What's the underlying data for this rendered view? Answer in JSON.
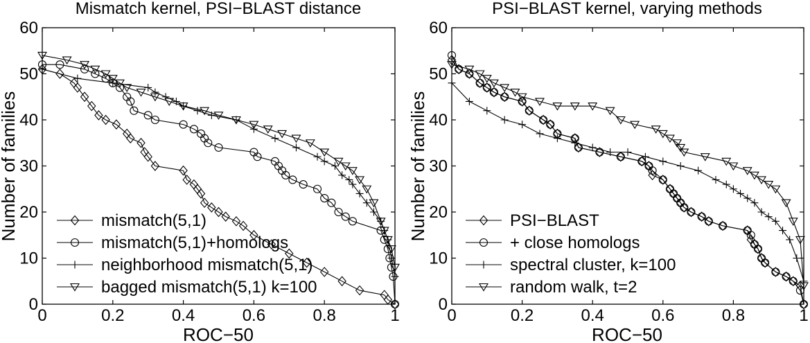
{
  "chart_data": [
    {
      "type": "line",
      "title": "Mismatch kernel, PSI−BLAST distance",
      "xlabel": "ROC−50",
      "ylabel": "Number of families",
      "xlim": [
        0,
        1
      ],
      "ylim": [
        0,
        60
      ],
      "xticks": [
        "0",
        "0.2",
        "0.4",
        "0.6",
        "0.8",
        "1"
      ],
      "yticks": [
        "0",
        "10",
        "20",
        "30",
        "40",
        "50",
        "60"
      ],
      "grid": false,
      "legend_position": "bottom-left",
      "series": [
        {
          "name": "mismatch(5,1)",
          "marker": "diamond",
          "x": [
            0.0,
            0.05,
            0.09,
            0.1,
            0.12,
            0.14,
            0.16,
            0.18,
            0.21,
            0.24,
            0.25,
            0.28,
            0.29,
            0.3,
            0.32,
            0.4,
            0.41,
            0.43,
            0.44,
            0.45,
            0.46,
            0.48,
            0.5,
            0.52,
            0.55,
            0.57,
            0.6,
            0.65,
            0.7,
            0.75,
            0.8,
            0.85,
            0.9,
            0.97,
            0.98,
            1.0
          ],
          "y": [
            51,
            50,
            48,
            47,
            45,
            43,
            41,
            40,
            39,
            37,
            36,
            35,
            33,
            32,
            30,
            29,
            27,
            26,
            25,
            24,
            22,
            21,
            20,
            19,
            18,
            17,
            15,
            13,
            11,
            9,
            7,
            5,
            3,
            2,
            1,
            0
          ]
        },
        {
          "name": "mismatch(5,1)+homologs",
          "marker": "circle",
          "x": [
            0.0,
            0.05,
            0.12,
            0.15,
            0.18,
            0.2,
            0.22,
            0.24,
            0.25,
            0.26,
            0.3,
            0.32,
            0.4,
            0.43,
            0.45,
            0.46,
            0.47,
            0.5,
            0.6,
            0.61,
            0.66,
            0.67,
            0.68,
            0.69,
            0.71,
            0.74,
            0.78,
            0.8,
            0.82,
            0.84,
            0.86,
            0.88,
            0.96,
            0.97,
            0.98,
            0.985,
            0.99,
            0.995,
            1.0
          ],
          "y": [
            52,
            52,
            51,
            50,
            49,
            48,
            47,
            45,
            44,
            42,
            41,
            40,
            39,
            38,
            37,
            36,
            35,
            34,
            33,
            32,
            31,
            30,
            29,
            28,
            27,
            26,
            25,
            23,
            22,
            20,
            19,
            18,
            16,
            14,
            12,
            10,
            8,
            6,
            0
          ]
        },
        {
          "name": "neighborhood mismatch(5,1)",
          "marker": "plus",
          "x": [
            0.0,
            0.1,
            0.2,
            0.3,
            0.32,
            0.35,
            0.38,
            0.4,
            0.44,
            0.48,
            0.55,
            0.6,
            0.66,
            0.72,
            0.78,
            0.8,
            0.83,
            0.85,
            0.87,
            0.88,
            0.9,
            0.92,
            0.94,
            0.96,
            0.97,
            0.98,
            0.99,
            1.0
          ],
          "y": [
            51,
            49,
            48,
            47,
            46,
            45,
            44,
            43,
            42,
            41,
            40,
            38,
            36,
            34,
            32,
            31,
            30,
            28,
            27,
            26,
            24,
            22,
            20,
            18,
            16,
            14,
            10,
            6
          ]
        },
        {
          "name": "bagged mismatch(5,1) k=100",
          "marker": "triangle-down",
          "x": [
            0.0,
            0.07,
            0.12,
            0.15,
            0.18,
            0.2,
            0.22,
            0.24,
            0.28,
            0.32,
            0.36,
            0.4,
            0.46,
            0.5,
            0.55,
            0.6,
            0.64,
            0.68,
            0.72,
            0.76,
            0.8,
            0.84,
            0.86,
            0.88,
            0.9,
            0.92,
            0.94,
            0.96,
            0.97,
            0.98,
            0.99,
            1.0
          ],
          "y": [
            54,
            53,
            52,
            51,
            50,
            49,
            48,
            47,
            46,
            45,
            44,
            43,
            42,
            41,
            40,
            39,
            38,
            37,
            36,
            35,
            33,
            31,
            30,
            29,
            27,
            25,
            22,
            18,
            16,
            14,
            12,
            8
          ]
        }
      ]
    },
    {
      "type": "line",
      "title": "PSI−BLAST kernel, varying methods",
      "xlabel": "ROC−50",
      "ylabel": "Number of families",
      "xlim": [
        0,
        1
      ],
      "ylim": [
        0,
        60
      ],
      "xticks": [
        "0",
        "0.2",
        "0.4",
        "0.6",
        "0.8",
        "1"
      ],
      "yticks": [
        "0",
        "10",
        "20",
        "30",
        "40",
        "50",
        "60"
      ],
      "grid": false,
      "legend_position": "bottom-left",
      "series": [
        {
          "name": "PSI−BLAST",
          "marker": "diamond",
          "x": [
            0.0,
            0.02,
            0.05,
            0.08,
            0.1,
            0.12,
            0.15,
            0.2,
            0.22,
            0.26,
            0.28,
            0.3,
            0.35,
            0.36,
            0.42,
            0.48,
            0.54,
            0.56,
            0.57,
            0.6,
            0.62,
            0.63,
            0.64,
            0.65,
            0.66,
            0.68,
            0.71,
            0.73,
            0.77,
            0.84,
            0.85,
            0.86,
            0.87,
            0.88,
            0.89,
            0.92,
            0.95,
            0.97,
            0.99,
            1.0
          ],
          "y": [
            53,
            51,
            50,
            48,
            47,
            46,
            45,
            44,
            42,
            40,
            39,
            37,
            36,
            34,
            33,
            32,
            31,
            30,
            28,
            27,
            25,
            24,
            23,
            22,
            21,
            20,
            19,
            18,
            17,
            16,
            14,
            13,
            12,
            10,
            9,
            7,
            6,
            5,
            4,
            0
          ]
        },
        {
          "name": "+ close homologs",
          "marker": "circle",
          "x": [
            0.0,
            0.02,
            0.05,
            0.08,
            0.1,
            0.12,
            0.15,
            0.2,
            0.22,
            0.26,
            0.28,
            0.3,
            0.35,
            0.36,
            0.42,
            0.48,
            0.54,
            0.56,
            0.57,
            0.6,
            0.62,
            0.63,
            0.64,
            0.65,
            0.66,
            0.68,
            0.71,
            0.73,
            0.77,
            0.84,
            0.85,
            0.86,
            0.87,
            0.88,
            0.89,
            0.92,
            0.95,
            0.97,
            0.99,
            1.0
          ],
          "y": [
            54,
            51,
            50,
            48,
            47,
            46,
            45,
            44,
            42,
            40,
            39,
            37,
            36,
            34,
            33,
            32,
            31,
            30,
            29,
            27,
            25,
            24,
            23,
            22,
            21,
            20,
            19,
            18,
            17,
            16,
            15,
            13,
            12,
            10,
            9,
            7,
            6,
            5,
            3,
            0
          ]
        },
        {
          "name": "spectral cluster, k=100",
          "marker": "plus",
          "x": [
            0.0,
            0.05,
            0.1,
            0.15,
            0.2,
            0.25,
            0.3,
            0.35,
            0.4,
            0.45,
            0.5,
            0.55,
            0.6,
            0.65,
            0.7,
            0.75,
            0.78,
            0.8,
            0.82,
            0.84,
            0.86,
            0.88,
            0.9,
            0.92,
            0.94,
            0.96,
            0.98,
            1.0
          ],
          "y": [
            48,
            44,
            42,
            40,
            39,
            37,
            36,
            35,
            34,
            33,
            33,
            32,
            31,
            30,
            29,
            27,
            26,
            25,
            24,
            23,
            22,
            20,
            19,
            18,
            16,
            14,
            10,
            5
          ]
        },
        {
          "name": "random walk, t=2",
          "marker": "triangle-down",
          "x": [
            0.0,
            0.05,
            0.08,
            0.1,
            0.12,
            0.15,
            0.18,
            0.2,
            0.25,
            0.3,
            0.35,
            0.4,
            0.45,
            0.48,
            0.52,
            0.58,
            0.6,
            0.62,
            0.64,
            0.65,
            0.66,
            0.72,
            0.78,
            0.8,
            0.84,
            0.86,
            0.88,
            0.9,
            0.92,
            0.95,
            0.97,
            0.99,
            1.0
          ],
          "y": [
            52,
            51,
            50,
            49,
            48,
            47,
            46,
            45,
            44,
            43,
            43,
            43,
            42,
            40,
            39,
            38,
            37,
            36,
            35,
            34,
            33,
            32,
            31,
            30,
            29,
            28,
            27,
            26,
            25,
            22,
            18,
            14,
            4
          ]
        }
      ]
    }
  ]
}
